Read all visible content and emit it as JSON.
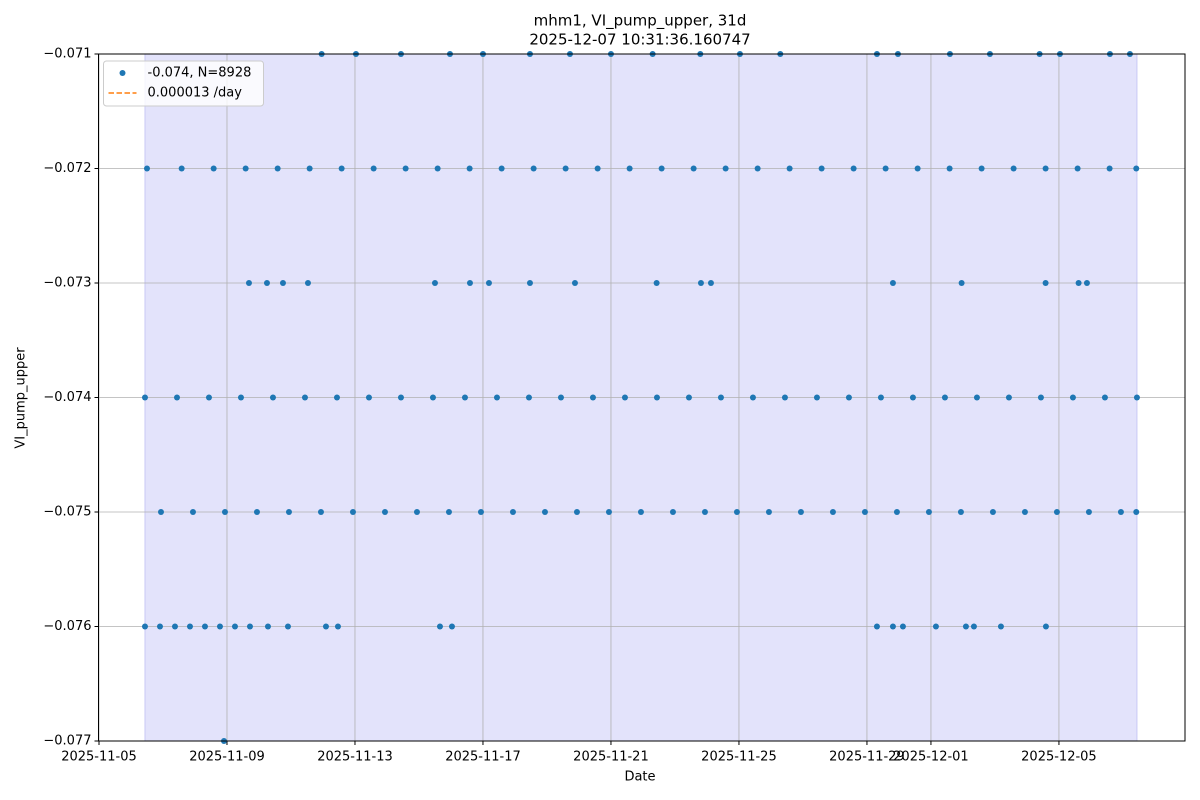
{
  "chart_data": {
    "type": "scatter",
    "title": "mhm1, VI_pump_upper, 31d",
    "subtitle": "2025-12-07 10:31:36.160747",
    "x_label": "Date",
    "y_label": "VI_pump_upper",
    "xlim": [
      "2025-11-04 23:38",
      "2025-12-08 22:33"
    ],
    "xticks": [
      "2025-11-05",
      "2025-11-09",
      "2025-11-13",
      "2025-11-17",
      "2025-11-21",
      "2025-11-25",
      "2025-11-29",
      "2025-12-01",
      "2025-12-05"
    ],
    "ylim": [
      -0.077,
      -0.071
    ],
    "yticks": [
      {
        "value": -0.077,
        "label": "−0.077"
      },
      {
        "value": -0.076,
        "label": "−0.076"
      },
      {
        "value": -0.075,
        "label": "−0.075"
      },
      {
        "value": -0.074,
        "label": "−0.074"
      },
      {
        "value": -0.073,
        "label": "−0.073"
      },
      {
        "value": -0.072,
        "label": "−0.072"
      },
      {
        "value": -0.071,
        "label": "−0.071"
      }
    ],
    "grid": true,
    "legend": "upper-left",
    "span": [
      "2025-11-06 10:30",
      "2025-12-07 10:30"
    ],
    "span_color": "#e3e3fb",
    "series": [
      {
        "name": "-0.074, N=8928",
        "type": "scatter",
        "color": "#1f77b4",
        "x": [
          "2025-11-06 10:30",
          "2025-11-07 10:30",
          "2025-11-08 10:30",
          "2025-11-09 10:30",
          "2025-11-10 10:30",
          "2025-11-11 10:30",
          "2025-11-12 10:30",
          "2025-11-13 10:30",
          "2025-11-14 10:30",
          "2025-11-15 10:30",
          "2025-11-16 10:30",
          "2025-11-17 10:30",
          "2025-11-18 10:30",
          "2025-11-19 10:30",
          "2025-11-20 10:30",
          "2025-11-21 10:30",
          "2025-11-22 10:30",
          "2025-11-23 10:30",
          "2025-11-24 10:30",
          "2025-11-25 10:30",
          "2025-11-26 10:30",
          "2025-11-27 10:30",
          "2025-11-28 10:30",
          "2025-11-29 10:30",
          "2025-11-30 10:30",
          "2025-12-01 10:30",
          "2025-12-02 10:30",
          "2025-12-03 10:30",
          "2025-12-04 10:30",
          "2025-12-05 10:30",
          "2025-12-06 10:30",
          "2025-12-07 10:30",
          "2025-11-06 22:30",
          "2025-11-07 22:30",
          "2025-11-08 22:30",
          "2025-11-09 22:30",
          "2025-11-10 22:30",
          "2025-11-11 22:30",
          "2025-11-12 22:30",
          "2025-11-13 22:30",
          "2025-11-14 22:30",
          "2025-11-15 22:30",
          "2025-11-16 22:30",
          "2025-11-17 22:30",
          "2025-11-18 22:30",
          "2025-11-19 22:30",
          "2025-11-20 22:30",
          "2025-11-21 22:30",
          "2025-11-22 22:30",
          "2025-11-23 22:30",
          "2025-11-24 22:30",
          "2025-11-25 22:30",
          "2025-11-26 22:30",
          "2025-11-27 22:30",
          "2025-11-28 22:30",
          "2025-11-29 22:30",
          "2025-11-30 22:30",
          "2025-12-01 22:30",
          "2025-12-02 22:30",
          "2025-12-03 22:30",
          "2025-12-04 22:30",
          "2025-12-05 22:30",
          "2025-12-06 22:30",
          "2025-12-07 10:00",
          "2025-11-06 12:00",
          "2025-11-07 14:00",
          "2025-11-08 14:00",
          "2025-11-09 14:00",
          "2025-11-10 14:00",
          "2025-11-11 14:00",
          "2025-11-12 14:00",
          "2025-11-13 14:00",
          "2025-11-14 14:00",
          "2025-11-15 14:00",
          "2025-11-16 14:00",
          "2025-11-17 14:00",
          "2025-11-18 14:00",
          "2025-11-19 14:00",
          "2025-11-20 14:00",
          "2025-11-21 14:00",
          "2025-11-22 14:00",
          "2025-11-23 14:00",
          "2025-11-24 14:00",
          "2025-11-25 14:00",
          "2025-11-26 14:00",
          "2025-11-27 14:00",
          "2025-11-28 14:00",
          "2025-11-29 14:00",
          "2025-11-30 14:00",
          "2025-12-01 14:00",
          "2025-12-02 14:00",
          "2025-12-03 14:00",
          "2025-12-04 14:00",
          "2025-12-05 14:00",
          "2025-12-06 14:00",
          "2025-12-07 10:00",
          "2025-11-11 23:00",
          "2025-11-13 00:45",
          "2025-11-14 10:30",
          "2025-11-15 23:15",
          "2025-11-17 00:00",
          "2025-11-18 11:15",
          "2025-11-19 17:15",
          "2025-11-21 00:00",
          "2025-11-22 07:15",
          "2025-11-23 19:00",
          "2025-11-25 00:45",
          "2025-11-26 07:00",
          "2025-11-29 07:30",
          "2025-11-29 23:15",
          "2025-12-01 14:15",
          "2025-12-02 20:15",
          "2025-12-04 09:30",
          "2025-12-05 00:45",
          "2025-12-06 14:15",
          "2025-12-07 05:15",
          "2025-11-09 16:30",
          "2025-11-10 06:00",
          "2025-11-10 18:00",
          "2025-11-11 12:45",
          "2025-11-15 12:00",
          "2025-11-16 14:15",
          "2025-11-17 04:30",
          "2025-11-18 11:15",
          "2025-11-19 21:00",
          "2025-11-22 10:15",
          "2025-11-23 19:30",
          "2025-11-24 03:00",
          "2025-11-29 19:30",
          "2025-12-01 23:00",
          "2025-12-04 14:00",
          "2025-12-05 14:45",
          "2025-12-05 21:00",
          "2025-11-06 10:30",
          "2025-11-06 21:45",
          "2025-11-07 09:00",
          "2025-11-07 20:15",
          "2025-11-08 07:30",
          "2025-11-08 18:45",
          "2025-11-09 06:00",
          "2025-11-09 17:15",
          "2025-11-10 06:45",
          "2025-11-10 21:45",
          "2025-11-12 02:15",
          "2025-11-12 11:15",
          "2025-11-15 15:45",
          "2025-11-16 00:45",
          "2025-11-29 07:30",
          "2025-11-29 19:30",
          "2025-11-30 03:00",
          "2025-12-01 03:45",
          "2025-12-02 02:15",
          "2025-12-02 08:15",
          "2025-12-03 04:30",
          "2025-12-04 14:15",
          "2025-11-08 21:45"
        ],
        "values": [
          -0.074,
          -0.074,
          -0.074,
          -0.074,
          -0.074,
          -0.074,
          -0.074,
          -0.074,
          -0.074,
          -0.074,
          -0.074,
          -0.074,
          -0.074,
          -0.074,
          -0.074,
          -0.074,
          -0.074,
          -0.074,
          -0.074,
          -0.074,
          -0.074,
          -0.074,
          -0.074,
          -0.074,
          -0.074,
          -0.074,
          -0.074,
          -0.074,
          -0.074,
          -0.074,
          -0.074,
          -0.074,
          -0.075,
          -0.075,
          -0.075,
          -0.075,
          -0.075,
          -0.075,
          -0.075,
          -0.075,
          -0.075,
          -0.075,
          -0.075,
          -0.075,
          -0.075,
          -0.075,
          -0.075,
          -0.075,
          -0.075,
          -0.075,
          -0.075,
          -0.075,
          -0.075,
          -0.075,
          -0.075,
          -0.075,
          -0.075,
          -0.075,
          -0.075,
          -0.075,
          -0.075,
          -0.075,
          -0.075,
          -0.075,
          -0.072,
          -0.072,
          -0.072,
          -0.072,
          -0.072,
          -0.072,
          -0.072,
          -0.072,
          -0.072,
          -0.072,
          -0.072,
          -0.072,
          -0.072,
          -0.072,
          -0.072,
          -0.072,
          -0.072,
          -0.072,
          -0.072,
          -0.072,
          -0.072,
          -0.072,
          -0.072,
          -0.072,
          -0.072,
          -0.072,
          -0.072,
          -0.072,
          -0.072,
          -0.072,
          -0.072,
          -0.072,
          -0.071,
          -0.071,
          -0.071,
          -0.071,
          -0.071,
          -0.071,
          -0.071,
          -0.071,
          -0.071,
          -0.071,
          -0.071,
          -0.071,
          -0.071,
          -0.071,
          -0.071,
          -0.071,
          -0.071,
          -0.071,
          -0.071,
          -0.071,
          -0.073,
          -0.073,
          -0.073,
          -0.073,
          -0.073,
          -0.073,
          -0.073,
          -0.073,
          -0.073,
          -0.073,
          -0.073,
          -0.073,
          -0.073,
          -0.073,
          -0.073,
          -0.073,
          -0.073,
          -0.076,
          -0.076,
          -0.076,
          -0.076,
          -0.076,
          -0.076,
          -0.076,
          -0.076,
          -0.076,
          -0.076,
          -0.076,
          -0.076,
          -0.076,
          -0.076,
          -0.076,
          -0.076,
          -0.076,
          -0.076,
          -0.076,
          -0.076,
          -0.076,
          -0.076,
          -0.077
        ]
      },
      {
        "name": "0.000013 /day",
        "type": "line",
        "color": "#ff7f0e",
        "dashed": true,
        "x": [
          "2025-11-06 10:30",
          "2025-12-07 10:30"
        ],
        "values": [
          -0.07385,
          -0.07346
        ]
      }
    ]
  }
}
